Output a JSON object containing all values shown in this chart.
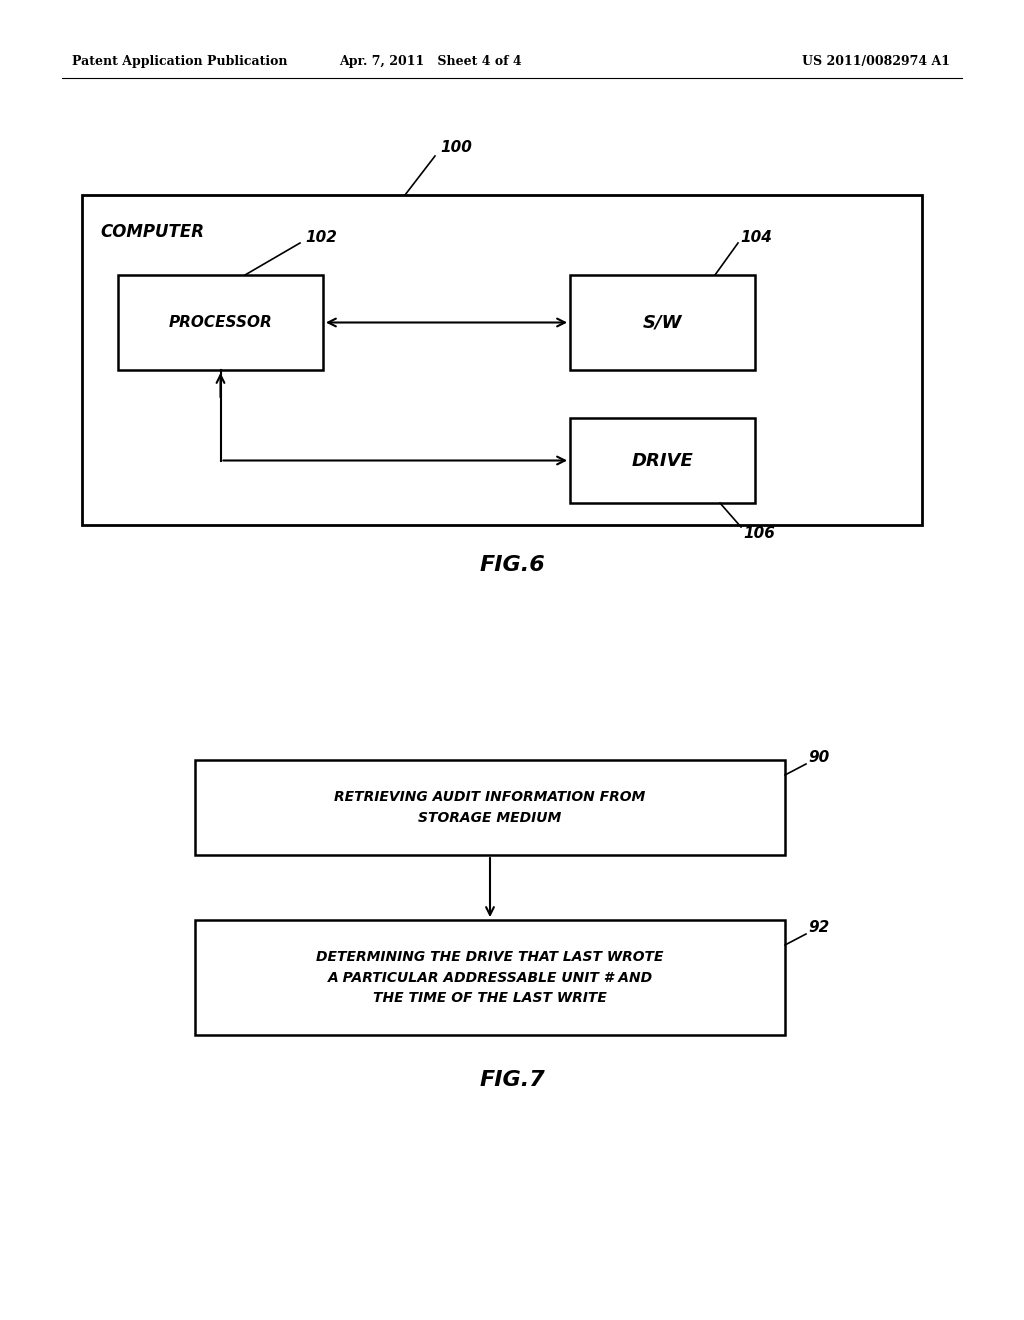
{
  "bg_color": "#ffffff",
  "header_left": "Patent Application Publication",
  "header_mid": "Apr. 7, 2011   Sheet 4 of 4",
  "header_right": "US 2011/0082974 A1",
  "fig6_label": "FIG.6",
  "fig7_label": "FIG.7",
  "computer_ref": "100",
  "processor_ref": "102",
  "sw_ref": "104",
  "drive_ref": "106",
  "box90_ref": "90",
  "box92_ref": "92",
  "computer_label": "COMPUTER",
  "processor_label": "PROCESSOR",
  "sw_label": "S/W",
  "drive_label": "DRIVE",
  "box90_label": "RETRIEVING AUDIT INFORMATION FROM\nSTORAGE MEDIUM",
  "box92_label": "DETERMINING THE DRIVE THAT LAST WROTE\nA PARTICULAR ADDRESSABLE UNIT # AND\nTHE TIME OF THE LAST WRITE"
}
